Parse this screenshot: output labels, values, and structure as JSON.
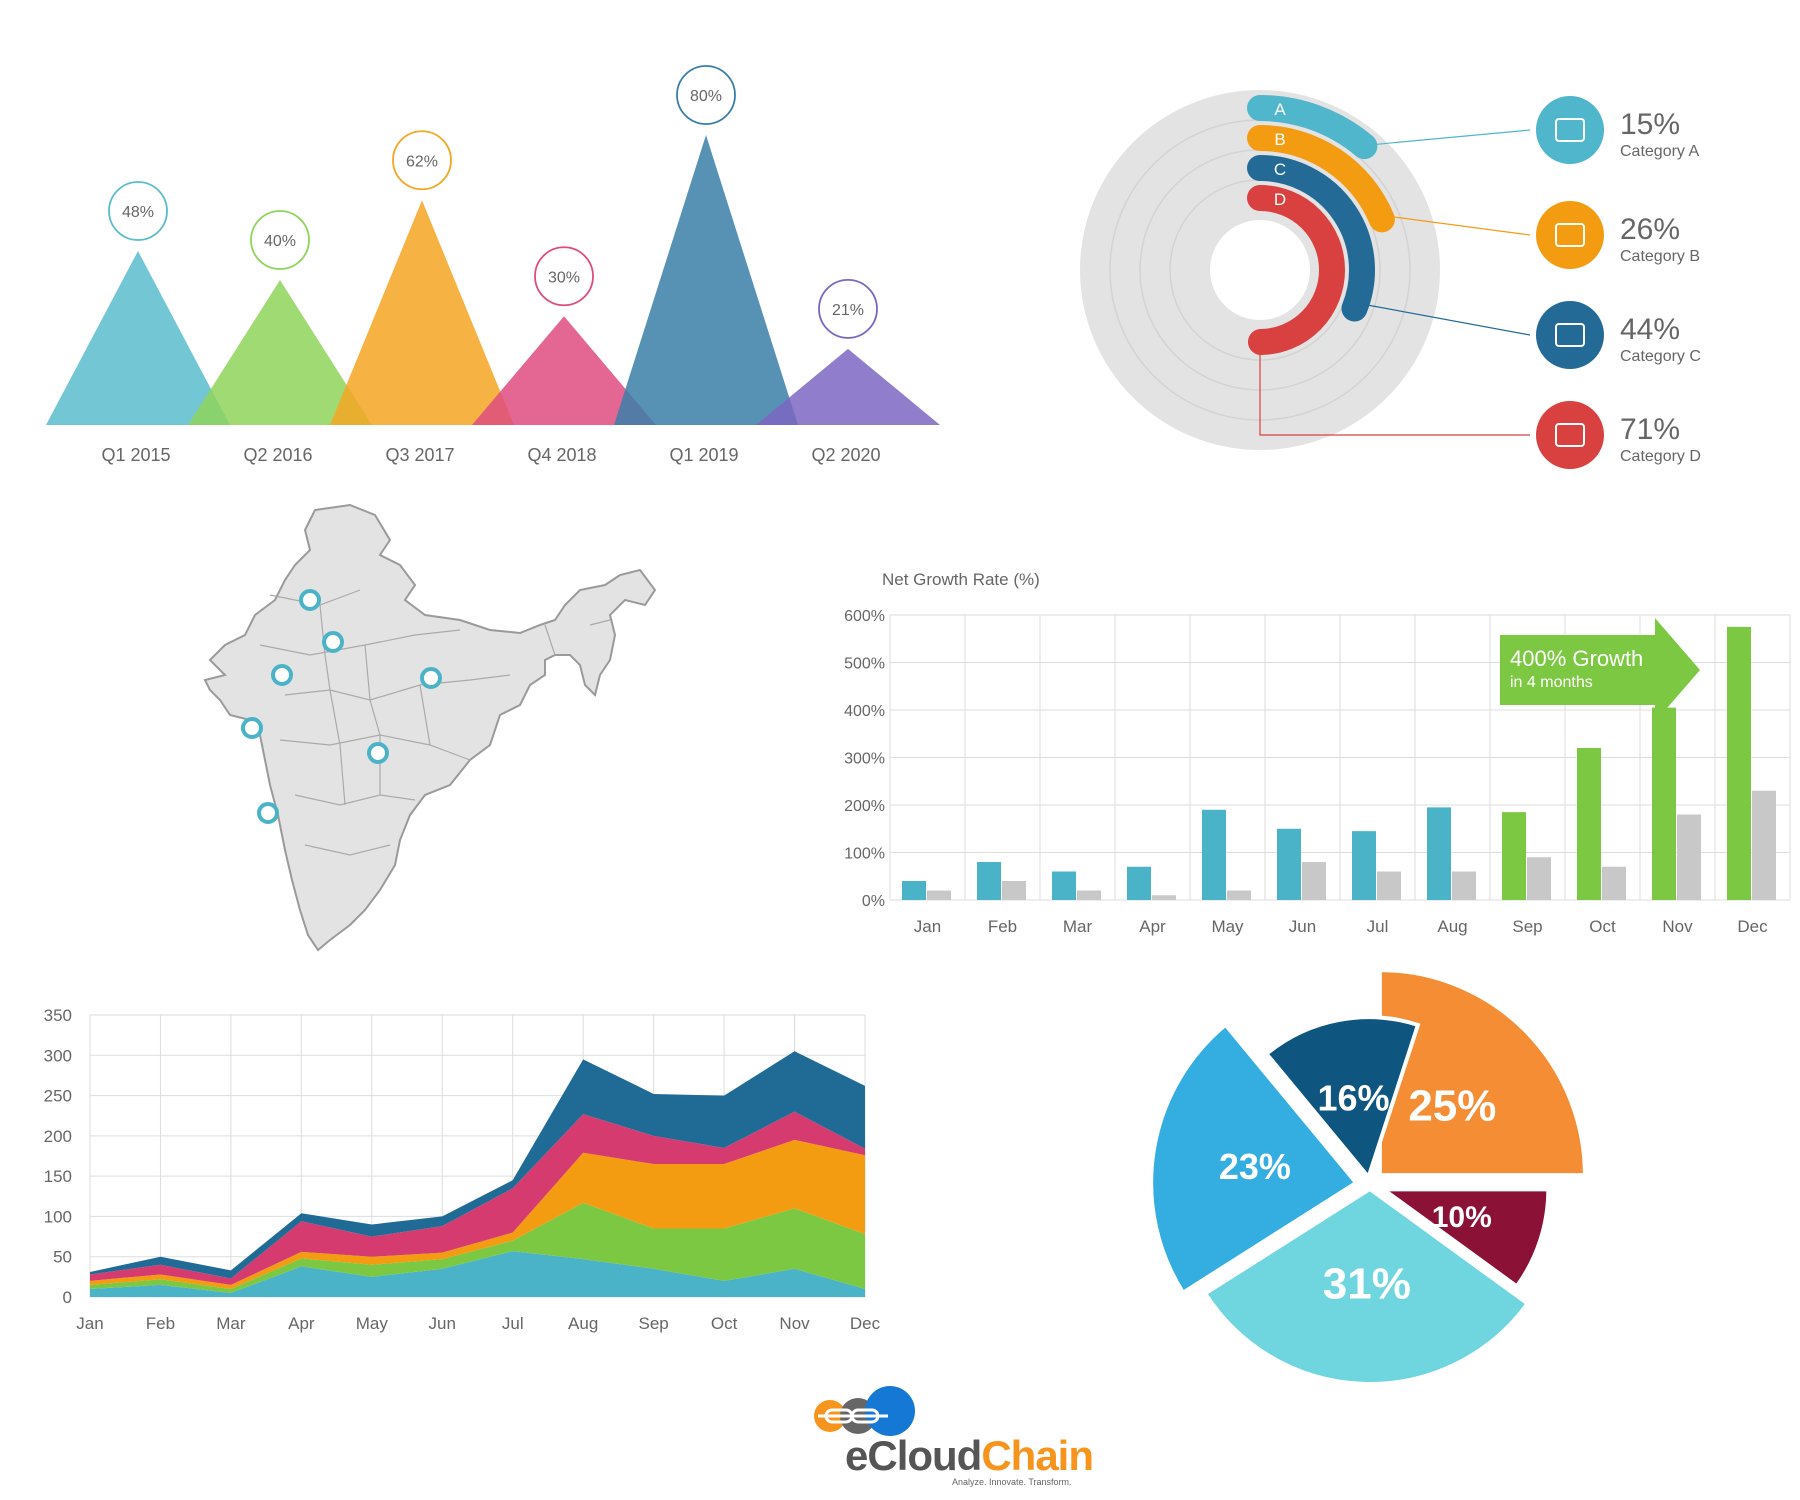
{
  "chart_data": [
    {
      "type": "area",
      "variant": "triangle-peaks",
      "categories": [
        "Q1 2015",
        "Q2 2016",
        "Q3 2017",
        "Q4 2018",
        "Q1 2019",
        "Q2 2020"
      ],
      "values": [
        48,
        40,
        62,
        30,
        80,
        21
      ],
      "labels": [
        "48%",
        "40%",
        "62%",
        "30%",
        "80%",
        "21%"
      ],
      "colors": [
        "#5bbccc",
        "#8ed45a",
        "#f5a623",
        "#de4c7f",
        "#3a7fa8",
        "#7c66c2"
      ],
      "ylim": [
        0,
        100
      ]
    },
    {
      "type": "radial-bar",
      "series": [
        {
          "letter": "A",
          "value": 15,
          "value_label": "15%",
          "category": "Category A",
          "color": "#4fb6cb",
          "icon": "truck-icon"
        },
        {
          "letter": "B",
          "value": 26,
          "value_label": "26%",
          "category": "Category B",
          "color": "#f39c12",
          "icon": "tools-icon"
        },
        {
          "letter": "C",
          "value": 44,
          "value_label": "44%",
          "category": "Category C",
          "color": "#236a96",
          "icon": "cart-icon"
        },
        {
          "letter": "D",
          "value": 71,
          "value_label": "71%",
          "category": "Category D",
          "color": "#d94040",
          "icon": "strategy-icon"
        }
      ]
    },
    {
      "type": "bar",
      "ylabel": "Net Growth Rate (%)",
      "ylim": [
        0,
        600
      ],
      "yticks": [
        "0%",
        "100%",
        "200%",
        "300%",
        "400%",
        "500%",
        "600%"
      ],
      "categories": [
        "Jan",
        "Feb",
        "Mar",
        "Apr",
        "May",
        "Jun",
        "Jul",
        "Aug",
        "Sep",
        "Oct",
        "Nov",
        "Dec"
      ],
      "series": [
        {
          "values": [
            40,
            80,
            60,
            70,
            190,
            150,
            145,
            195,
            185,
            320,
            405,
            575
          ],
          "colors": [
            "#4ab3c8",
            "#4ab3c8",
            "#4ab3c8",
            "#4ab3c8",
            "#4ab3c8",
            "#4ab3c8",
            "#4ab3c8",
            "#4ab3c8",
            "#7dc843",
            "#7dc843",
            "#7dc843",
            "#7dc843"
          ]
        },
        {
          "values": [
            20,
            40,
            20,
            10,
            20,
            80,
            60,
            60,
            90,
            70,
            180,
            230
          ],
          "color": "#c8c8c8"
        }
      ],
      "annotation": {
        "title": "400% Growth",
        "subtitle": "in 4 months",
        "color": "#7dc843"
      },
      "grid": true
    },
    {
      "type": "area",
      "stacked": true,
      "ylim": [
        0,
        350
      ],
      "yticks": [
        0,
        50,
        100,
        150,
        200,
        250,
        300,
        350
      ],
      "categories": [
        "Jan",
        "Feb",
        "Mar",
        "Apr",
        "May",
        "Jun",
        "Jul",
        "Aug",
        "Sep",
        "Oct",
        "Nov",
        "Dec"
      ],
      "series": [
        {
          "color": "#4ab3c8",
          "values": [
            10,
            15,
            5,
            38,
            25,
            35,
            57,
            47,
            35,
            20,
            35,
            10
          ]
        },
        {
          "color": "#7dc843",
          "values": [
            5,
            7,
            5,
            10,
            15,
            12,
            13,
            70,
            50,
            65,
            75,
            68
          ]
        },
        {
          "color": "#f39c12",
          "values": [
            5,
            6,
            5,
            8,
            10,
            8,
            10,
            62,
            80,
            80,
            85,
            98
          ]
        },
        {
          "color": "#d63b6f",
          "values": [
            8,
            12,
            8,
            38,
            25,
            33,
            55,
            48,
            35,
            20,
            35,
            8
          ]
        },
        {
          "color": "#1f6b96",
          "values": [
            3,
            10,
            10,
            10,
            15,
            12,
            10,
            68,
            52,
            65,
            75,
            78
          ]
        }
      ],
      "grid": true
    },
    {
      "type": "pie",
      "exploded": true,
      "slices": [
        {
          "label": "25%",
          "value": 25,
          "color": "#f58d35"
        },
        {
          "label": "10%",
          "value": 10,
          "color": "#8b1136"
        },
        {
          "label": "31%",
          "value": 31,
          "color": "#6fd6e0"
        },
        {
          "label": "23%",
          "value": 23,
          "color": "#34ade0"
        },
        {
          "label": "16%",
          "value": 16,
          "color": "#0e5580"
        }
      ]
    }
  ],
  "map": {
    "region": "India",
    "fill": "#e3e3e3",
    "stroke": "#9a9a9a",
    "marker_color": "#4ab3c8",
    "marker_count": 7
  },
  "logo": {
    "name_part1": "eCloud",
    "name_part2": "Chain",
    "tagline": "Analyze. Innovate. Transform."
  }
}
